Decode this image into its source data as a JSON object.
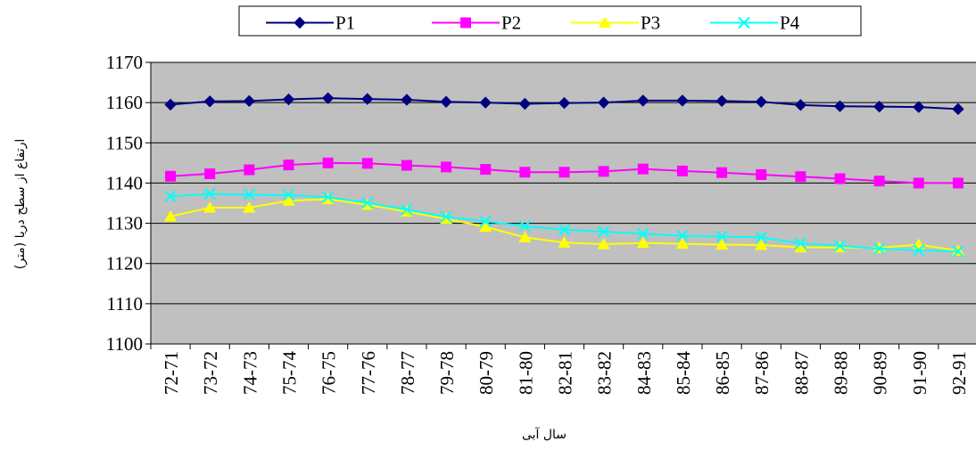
{
  "chart_data": {
    "type": "line",
    "xlabel": "سال آبی",
    "ylabel": "ارتفاع از سطح دریا (متر)",
    "ylim": [
      1100,
      1170
    ],
    "yticks": [
      "1170",
      "1160",
      "1150",
      "1140",
      "1130",
      "1120",
      "1110",
      "1100"
    ],
    "grid": true,
    "legend_position": "top",
    "plot_background": "#c0c0c0",
    "categories": [
      "72-71",
      "73-72",
      "74-73",
      "75-74",
      "76-75",
      "77-76",
      "78-77",
      "79-78",
      "80-79",
      "81-80",
      "82-81",
      "83-82",
      "84-83",
      "85-84",
      "86-85",
      "87-86",
      "88-87",
      "89-88",
      "90-89",
      "91-90",
      "92-91"
    ],
    "series": [
      {
        "name": "P1",
        "color": "#000080",
        "marker": "diamond",
        "values": [
          1159.5,
          1160.3,
          1160.4,
          1160.8,
          1161.1,
          1160.9,
          1160.7,
          1160.2,
          1160.0,
          1159.7,
          1159.9,
          1160.0,
          1160.5,
          1160.5,
          1160.4,
          1160.2,
          1159.4,
          1159.1,
          1159.0,
          1158.9,
          1158.4
        ]
      },
      {
        "name": "P2",
        "color": "#ff00ff",
        "marker": "square",
        "values": [
          1141.7,
          1142.3,
          1143.3,
          1144.5,
          1145.0,
          1144.9,
          1144.4,
          1144.0,
          1143.4,
          1142.7,
          1142.7,
          1142.9,
          1143.5,
          1143.0,
          1142.6,
          1142.1,
          1141.6,
          1141.1,
          1140.5,
          1140.0,
          1140.0
        ]
      },
      {
        "name": "P3",
        "color": "#ffff00",
        "marker": "triangle",
        "values": [
          1131.7,
          1133.9,
          1133.9,
          1135.6,
          1136.0,
          1134.6,
          1132.9,
          1131.1,
          1129.1,
          1126.5,
          1125.2,
          1124.8,
          1125.1,
          1124.9,
          1124.7,
          1124.6,
          1124.0,
          1124.0,
          1123.9,
          1124.7,
          1123.2
        ]
      },
      {
        "name": "P4",
        "color": "#00ffff",
        "marker": "x",
        "values": [
          1136.7,
          1137.3,
          1137.1,
          1137.0,
          1136.5,
          1135.1,
          1133.4,
          1131.6,
          1130.5,
          1129.3,
          1128.4,
          1127.9,
          1127.4,
          1126.9,
          1126.7,
          1126.5,
          1125.0,
          1124.4,
          1123.7,
          1123.3,
          1123.0
        ]
      }
    ]
  }
}
